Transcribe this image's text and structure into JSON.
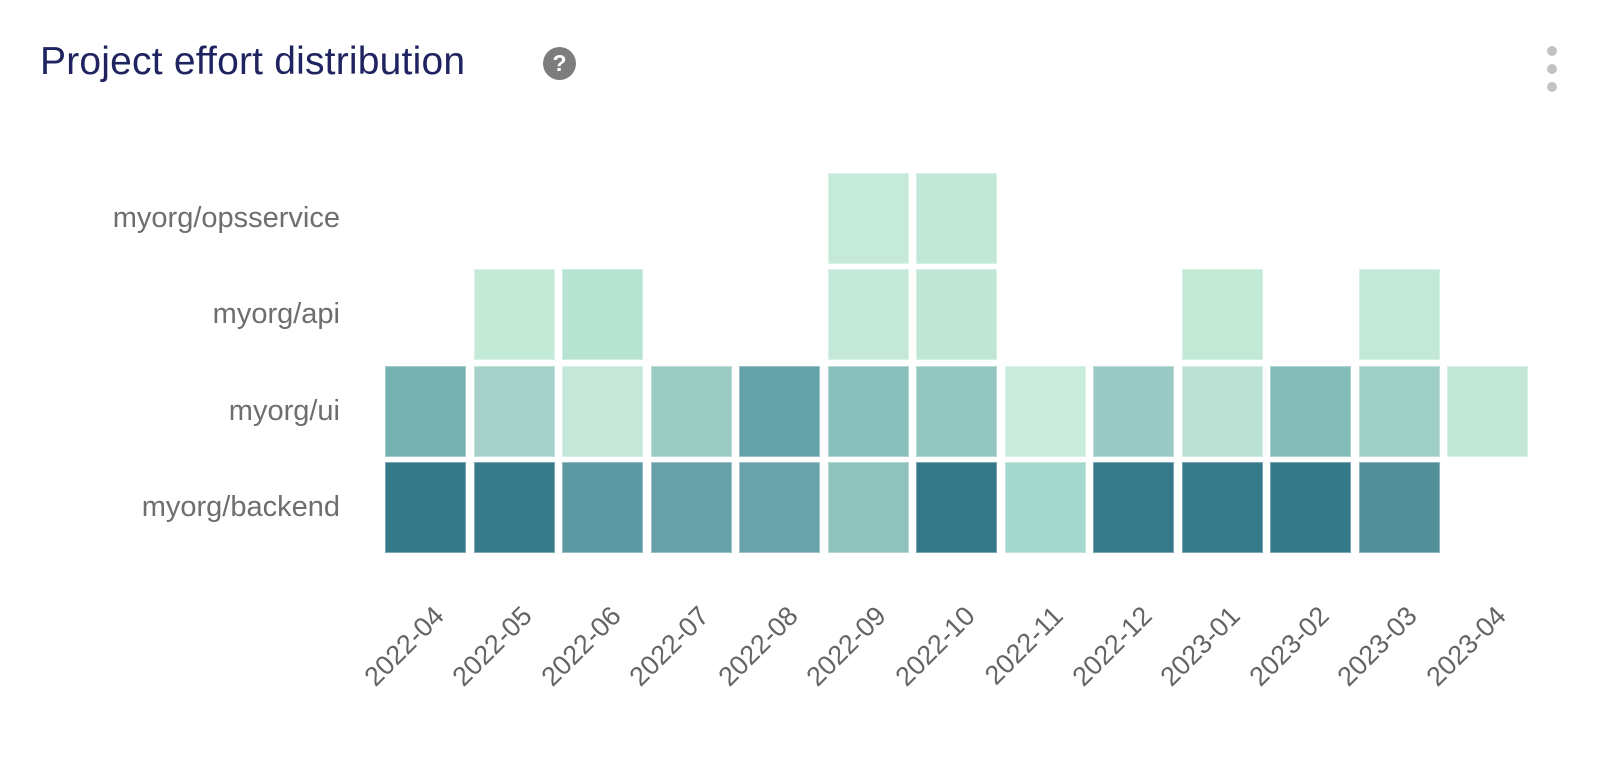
{
  "header": {
    "title": "Project effort distribution",
    "help_icon": "?",
    "menu_icon": "kebab-vertical"
  },
  "chart_data": {
    "type": "heatmap",
    "title": "Project effort distribution",
    "xlabel": "",
    "ylabel": "",
    "legend": "none",
    "grid": "off",
    "x_categories": [
      "2022-04",
      "2022-05",
      "2022-06",
      "2022-07",
      "2022-08",
      "2022-09",
      "2022-10",
      "2022-11",
      "2022-12",
      "2023-01",
      "2023-02",
      "2023-03",
      "2023-04"
    ],
    "y_categories": [
      "myorg/opsservice",
      "myorg/api",
      "myorg/ui",
      "myorg/backend"
    ],
    "color_scale": {
      "low": "#c8ebdc",
      "high": "#34788a"
    },
    "cells": [
      {
        "row": 0,
        "col": 5,
        "color": "#c6ead9",
        "intensity": 0.12
      },
      {
        "row": 0,
        "col": 6,
        "color": "#c1e7d6",
        "intensity": 0.13
      },
      {
        "row": 1,
        "col": 1,
        "color": "#c3e9d7",
        "intensity": 0.12
      },
      {
        "row": 1,
        "col": 2,
        "color": "#b7e4d2",
        "intensity": 0.16
      },
      {
        "row": 1,
        "col": 5,
        "color": "#c4e9d8",
        "intensity": 0.12
      },
      {
        "row": 1,
        "col": 6,
        "color": "#c0e7d5",
        "intensity": 0.13
      },
      {
        "row": 1,
        "col": 9,
        "color": "#c2e8d6",
        "intensity": 0.12
      },
      {
        "row": 1,
        "col": 11,
        "color": "#c2e8d7",
        "intensity": 0.12
      },
      {
        "row": 2,
        "col": 0,
        "color": "#76b1b2",
        "intensity": 0.52
      },
      {
        "row": 2,
        "col": 1,
        "color": "#a6d2c9",
        "intensity": 0.3
      },
      {
        "row": 2,
        "col": 2,
        "color": "#c4e7d9",
        "intensity": 0.13
      },
      {
        "row": 2,
        "col": 3,
        "color": "#9ccbc4",
        "intensity": 0.34
      },
      {
        "row": 2,
        "col": 4,
        "color": "#63a2a8",
        "intensity": 0.62
      },
      {
        "row": 2,
        "col": 5,
        "color": "#8ac0bb",
        "intensity": 0.42
      },
      {
        "row": 2,
        "col": 6,
        "color": "#93c6c0",
        "intensity": 0.38
      },
      {
        "row": 2,
        "col": 7,
        "color": "#c8ebdc",
        "intensity": 0.1
      },
      {
        "row": 2,
        "col": 8,
        "color": "#9acac3",
        "intensity": 0.35
      },
      {
        "row": 2,
        "col": 9,
        "color": "#bce2d6",
        "intensity": 0.18
      },
      {
        "row": 2,
        "col": 10,
        "color": "#84bcb8",
        "intensity": 0.45
      },
      {
        "row": 2,
        "col": 11,
        "color": "#9fcec7",
        "intensity": 0.33
      },
      {
        "row": 2,
        "col": 12,
        "color": "#c2e6d8",
        "intensity": 0.13
      },
      {
        "row": 3,
        "col": 0,
        "color": "#35788a",
        "intensity": 0.95
      },
      {
        "row": 3,
        "col": 1,
        "color": "#377b8a",
        "intensity": 0.93
      },
      {
        "row": 3,
        "col": 2,
        "color": "#5b9aa3",
        "intensity": 0.68
      },
      {
        "row": 3,
        "col": 3,
        "color": "#68a0a8",
        "intensity": 0.6
      },
      {
        "row": 3,
        "col": 4,
        "color": "#6aa2a9",
        "intensity": 0.58
      },
      {
        "row": 3,
        "col": 5,
        "color": "#8fc2bd",
        "intensity": 0.4
      },
      {
        "row": 3,
        "col": 6,
        "color": "#34788a",
        "intensity": 0.95
      },
      {
        "row": 3,
        "col": 7,
        "color": "#a5d8cc",
        "intensity": 0.28
      },
      {
        "row": 3,
        "col": 8,
        "color": "#35798a",
        "intensity": 0.94
      },
      {
        "row": 3,
        "col": 9,
        "color": "#35798a",
        "intensity": 0.94
      },
      {
        "row": 3,
        "col": 10,
        "color": "#34788a",
        "intensity": 0.95
      },
      {
        "row": 3,
        "col": 11,
        "color": "#549099",
        "intensity": 0.72
      }
    ]
  }
}
